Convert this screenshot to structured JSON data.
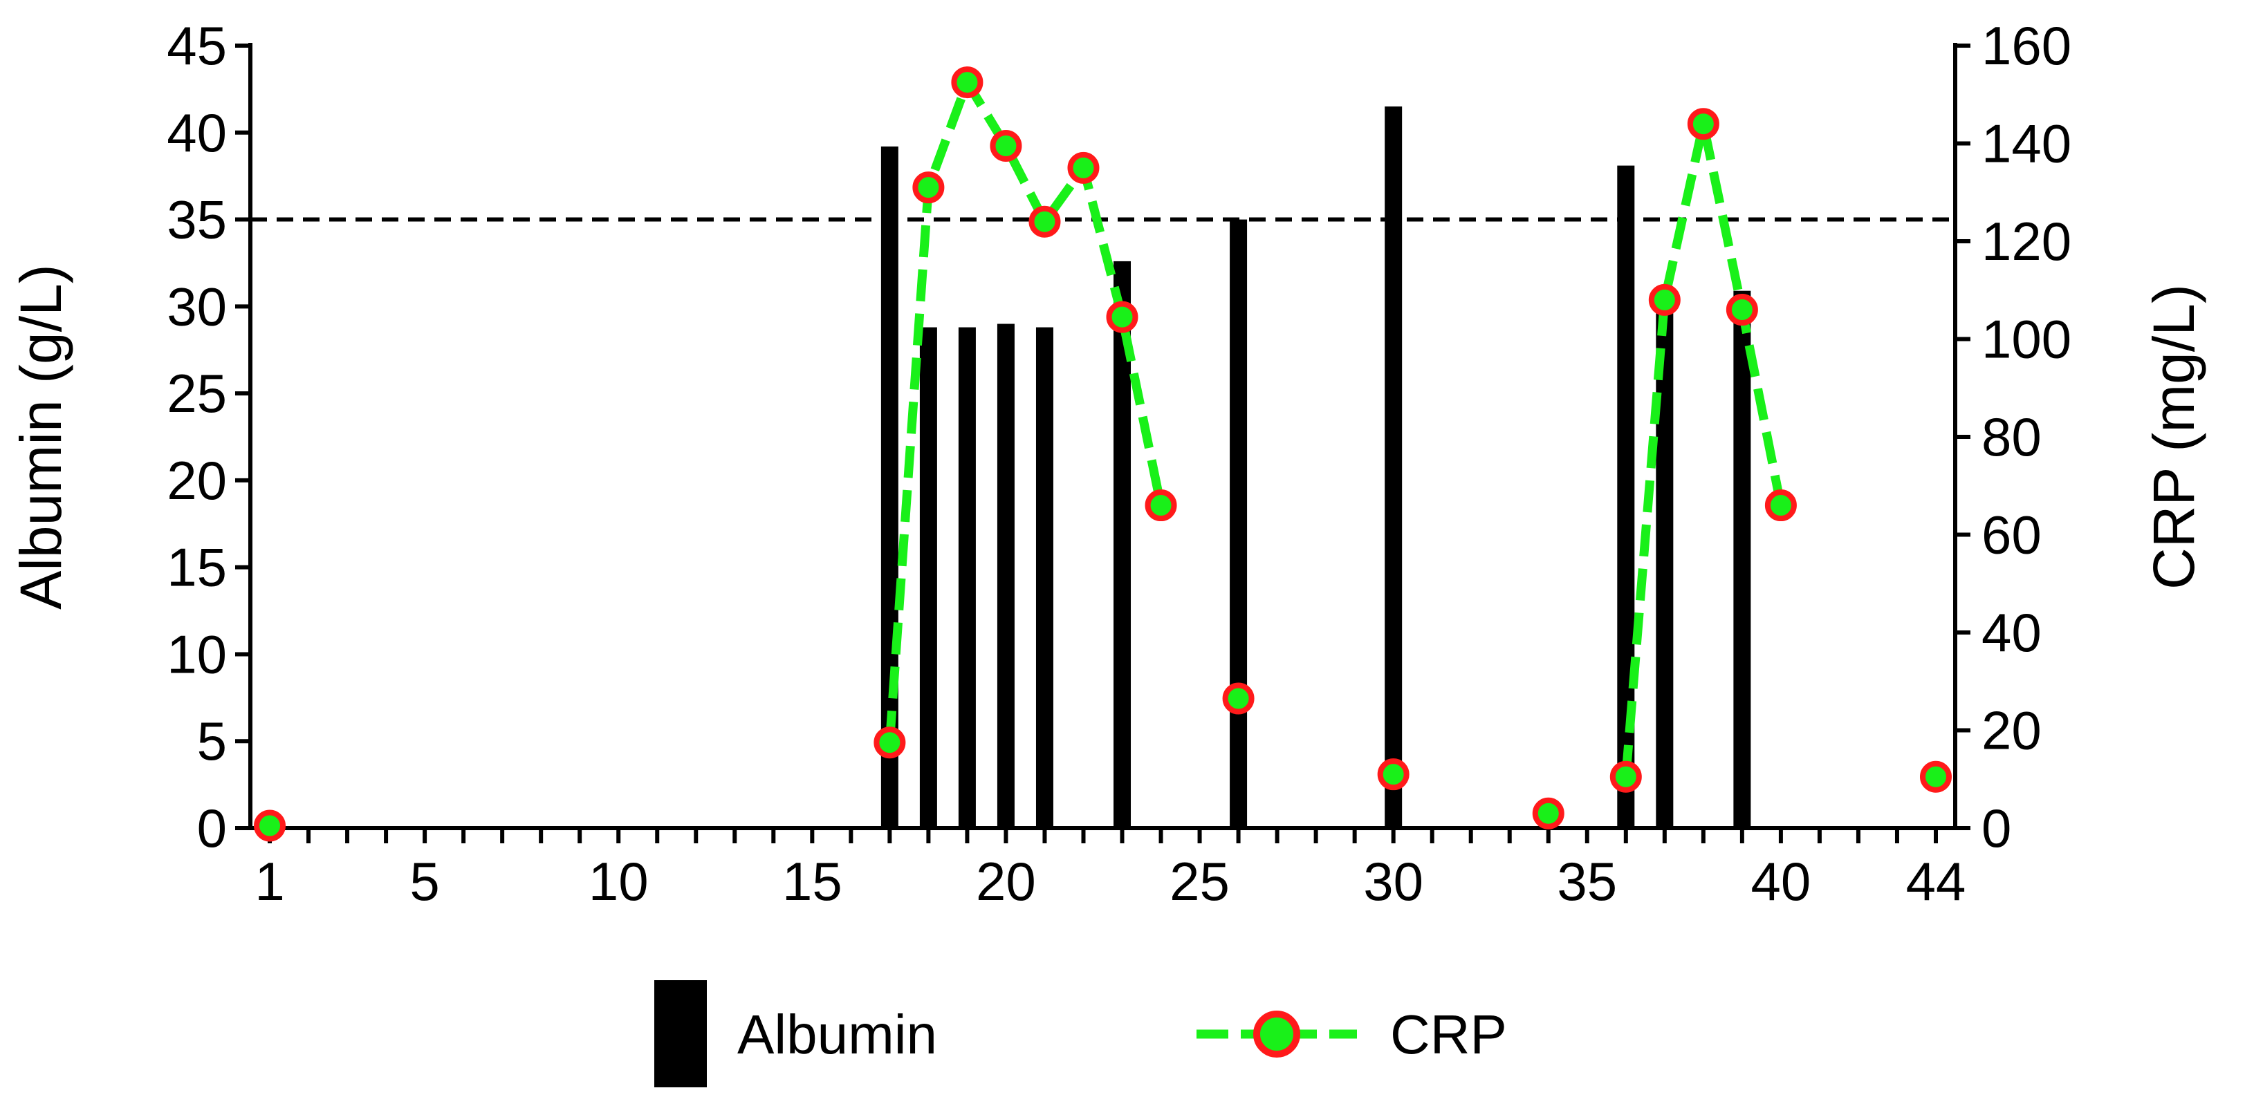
{
  "chart_data": {
    "type": "bar",
    "x": {
      "range": [
        0.5,
        44.5
      ],
      "tick_labels": [
        1,
        5,
        10,
        15,
        20,
        25,
        30,
        35,
        40,
        44
      ]
    },
    "y_left": {
      "label": "Albumin (g/L)",
      "range": [
        0,
        45
      ],
      "ticks": [
        0,
        5,
        10,
        15,
        20,
        25,
        30,
        35,
        40,
        45
      ],
      "reference_line": 35
    },
    "y_right": {
      "label": "CRP (mg/L)",
      "range": [
        0,
        160
      ],
      "ticks": [
        0,
        20,
        40,
        60,
        80,
        100,
        120,
        140,
        160
      ]
    },
    "series": [
      {
        "name": "Albumin",
        "kind": "bar",
        "axis": "left",
        "color": "#000000",
        "points": [
          {
            "x": 17,
            "y": 39.2
          },
          {
            "x": 18,
            "y": 28.8
          },
          {
            "x": 19,
            "y": 28.8
          },
          {
            "x": 20,
            "y": 29.0
          },
          {
            "x": 21,
            "y": 28.8
          },
          {
            "x": 23,
            "y": 32.6
          },
          {
            "x": 26,
            "y": 35.0
          },
          {
            "x": 30,
            "y": 41.5
          },
          {
            "x": 36,
            "y": 38.1
          },
          {
            "x": 37,
            "y": 30.2
          },
          {
            "x": 39,
            "y": 30.9
          }
        ]
      },
      {
        "name": "CRP",
        "kind": "line",
        "axis": "right",
        "line_color": "#19f019",
        "marker_fill": "#19f019",
        "marker_edge": "#ff1a1a",
        "segments": [
          [
            {
              "x": 17,
              "y": 17.5
            },
            {
              "x": 18,
              "y": 131
            },
            {
              "x": 19,
              "y": 152.5
            },
            {
              "x": 20,
              "y": 139.5
            },
            {
              "x": 21,
              "y": 124
            },
            {
              "x": 22,
              "y": 135
            },
            {
              "x": 23,
              "y": 104.5
            },
            {
              "x": 24,
              "y": 66
            }
          ],
          [
            {
              "x": 36,
              "y": 10.5
            },
            {
              "x": 37,
              "y": 108
            },
            {
              "x": 38,
              "y": 144
            },
            {
              "x": 39,
              "y": 106
            },
            {
              "x": 40,
              "y": 66
            }
          ]
        ],
        "isolated_points": [
          {
            "x": 1,
            "y": 0.5
          },
          {
            "x": 26,
            "y": 26.5
          },
          {
            "x": 30,
            "y": 11
          },
          {
            "x": 34,
            "y": 3
          },
          {
            "x": 44,
            "y": 10.5
          }
        ]
      }
    ],
    "legend": {
      "placement": "bottom-center",
      "entries": [
        "Albumin",
        "CRP"
      ]
    },
    "grid": false
  }
}
